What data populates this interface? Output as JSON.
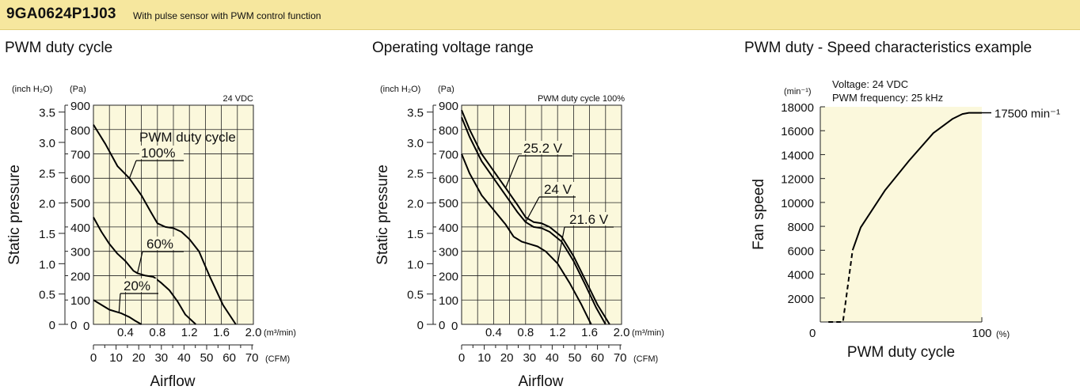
{
  "header": {
    "model": "9GA0624P1J03",
    "description": "With pulse sensor with PWM control function"
  },
  "colors": {
    "banner": "#f6e79e",
    "plot_bg": "#fbf8dc",
    "grid": "#222222",
    "curve": "#000000"
  },
  "panels": [
    {
      "title": "PWM duty cycle"
    },
    {
      "title": "Operating voltage range"
    },
    {
      "title": "PWM duty - Speed characteristics example"
    }
  ],
  "chart_data": [
    {
      "type": "line",
      "title": "PWM duty cycle",
      "condition": "24 VDC",
      "ylabel": "Static pressure",
      "xlabel": "Airflow",
      "y_unit_inch": "(inch H₂O)",
      "y_unit_pa": "(Pa)",
      "x_unit_m3": "(m³/min)",
      "x_unit_cfm": "(CFM)",
      "legend_title": "PWM duty cycle",
      "xlim": [
        0,
        2.0
      ],
      "ylim": [
        0,
        900
      ],
      "pa_ticks": [
        "900",
        "800",
        "700",
        "600",
        "500",
        "400",
        "300",
        "200",
        "100",
        "0"
      ],
      "inch_ticks": [
        "3.5",
        "3.0",
        "2.5",
        "2.0",
        "1.5",
        "1.0",
        "0.5",
        "0"
      ],
      "m3_ticks": [
        "0.4",
        "0.8",
        "1.2",
        "1.6",
        "2.0"
      ],
      "cfm_ticks": [
        "0",
        "10",
        "20",
        "30",
        "40",
        "50",
        "60",
        "70"
      ],
      "series": [
        {
          "name": "100%",
          "x": [
            0,
            0.15,
            0.3,
            0.45,
            0.6,
            0.72,
            0.8,
            0.9,
            1.0,
            1.1,
            1.2,
            1.32,
            1.45,
            1.62,
            1.78
          ],
          "y": [
            820,
            740,
            650,
            600,
            530,
            460,
            415,
            400,
            395,
            380,
            350,
            300,
            200,
            80,
            0
          ]
        },
        {
          "name": "60%",
          "x": [
            0,
            0.1,
            0.2,
            0.3,
            0.4,
            0.5,
            0.55,
            0.65,
            0.75,
            0.85,
            0.95,
            1.05,
            1.15,
            1.28
          ],
          "y": [
            440,
            380,
            330,
            290,
            260,
            220,
            210,
            200,
            195,
            170,
            140,
            95,
            40,
            0
          ]
        },
        {
          "name": "20%",
          "x": [
            0,
            0.1,
            0.2,
            0.3,
            0.35,
            0.45,
            0.52,
            0.6
          ],
          "y": [
            100,
            80,
            60,
            50,
            45,
            30,
            15,
            0
          ]
        }
      ]
    },
    {
      "type": "line",
      "title": "Operating voltage range",
      "condition": "PWM duty cycle 100%",
      "ylabel": "Static pressure",
      "xlabel": "Airflow",
      "y_unit_inch": "(inch H₂O)",
      "y_unit_pa": "(Pa)",
      "x_unit_m3": "(m³/min)",
      "x_unit_cfm": "(CFM)",
      "xlim": [
        0,
        2.0
      ],
      "ylim": [
        0,
        900
      ],
      "pa_ticks": [
        "900",
        "800",
        "700",
        "600",
        "500",
        "400",
        "300",
        "200",
        "100",
        "0"
      ],
      "inch_ticks": [
        "3.5",
        "3.0",
        "2.5",
        "2.0",
        "1.5",
        "1.0",
        "0.5",
        "0"
      ],
      "m3_ticks": [
        "0.4",
        "0.8",
        "1.2",
        "1.6",
        "2.0"
      ],
      "cfm_ticks": [
        "0",
        "10",
        "20",
        "30",
        "40",
        "50",
        "60",
        "70"
      ],
      "series": [
        {
          "name": "25.2 V",
          "x": [
            0,
            0.1,
            0.25,
            0.4,
            0.55,
            0.7,
            0.8,
            0.9,
            1.0,
            1.1,
            1.25,
            1.4,
            1.55,
            1.7,
            1.85
          ],
          "y": [
            880,
            800,
            700,
            630,
            560,
            490,
            440,
            420,
            415,
            400,
            360,
            280,
            180,
            80,
            0
          ]
        },
        {
          "name": "24 V",
          "x": [
            0,
            0.1,
            0.25,
            0.4,
            0.55,
            0.7,
            0.8,
            0.9,
            1.0,
            1.1,
            1.25,
            1.4,
            1.55,
            1.68,
            1.8
          ],
          "y": [
            850,
            770,
            670,
            600,
            530,
            460,
            420,
            400,
            395,
            380,
            340,
            260,
            160,
            70,
            0
          ]
        },
        {
          "name": "21.6 V",
          "x": [
            0,
            0.1,
            0.25,
            0.4,
            0.55,
            0.65,
            0.75,
            0.85,
            0.95,
            1.05,
            1.2,
            1.35,
            1.5,
            1.62
          ],
          "y": [
            700,
            620,
            530,
            470,
            410,
            360,
            340,
            330,
            320,
            300,
            250,
            170,
            80,
            0
          ]
        }
      ]
    },
    {
      "type": "line",
      "title": "PWM duty - Speed characteristics example",
      "ylabel": "Fan speed",
      "xlabel": "PWM duty cycle",
      "y_unit": "(min⁻¹)",
      "x_unit": "(%)",
      "annotation_voltage": "Voltage: 24 VDC",
      "annotation_frequency": "PWM frequency: 25 kHz",
      "endpoint_label": "17500 min⁻¹",
      "xlim": [
        0,
        100
      ],
      "ylim": [
        0,
        18000
      ],
      "y_ticks": [
        "18000",
        "16000",
        "14000",
        "12000",
        "10000",
        "8000",
        "6000",
        "4000",
        "2000"
      ],
      "x_tick_start": "0",
      "x_tick_end": "100",
      "series": [
        {
          "name": "dashed",
          "x": [
            5,
            14,
            20
          ],
          "y": [
            0,
            0,
            6000
          ]
        },
        {
          "name": "solid",
          "x": [
            20,
            25,
            40,
            55,
            70,
            82,
            88,
            92,
            95,
            100
          ],
          "y": [
            6000,
            7900,
            11000,
            13500,
            15800,
            17000,
            17400,
            17500,
            17500,
            17500
          ]
        }
      ]
    }
  ]
}
